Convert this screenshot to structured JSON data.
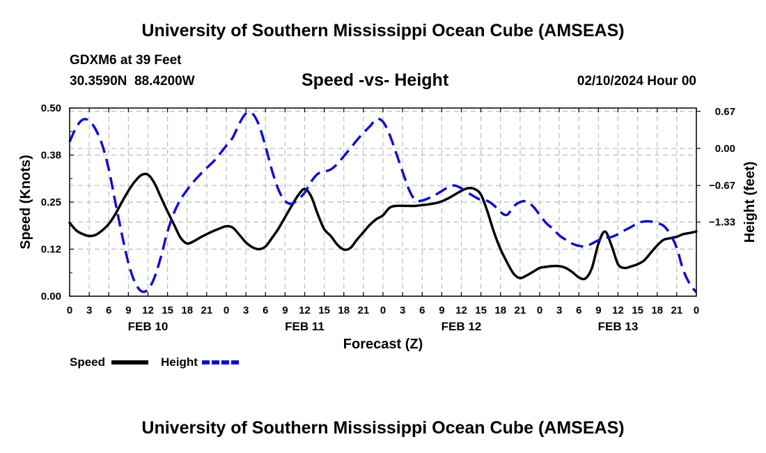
{
  "header": {
    "title": "University of Southern Mississippi Ocean Cube (AMSEAS)",
    "station": "GDXM6 at 39 Feet",
    "coords": "30.3590N  88.4200W",
    "chart_title": "Speed -vs- Height",
    "date": "02/10/2024 Hour 00"
  },
  "footer": {
    "title": "University of Southern Mississippi Ocean Cube (AMSEAS)"
  },
  "colors": {
    "speed": "#000000",
    "height": "#1010c8",
    "grid": "#bbbbbb"
  },
  "chart_data": {
    "type": "line",
    "title": "Speed -vs- Height",
    "xlabel": "Forecast (Z)",
    "ylabel": "Speed (Knots)",
    "ylabel_right": "Height (feet)",
    "xlim": [
      0,
      96
    ],
    "ylim": [
      0,
      0.5
    ],
    "ylim_right": [
      -2.67,
      0.73
    ],
    "yticks": [
      {
        "v": 0.0,
        "label": "0.00"
      },
      {
        "v": 0.125,
        "label": "0.12"
      },
      {
        "v": 0.25,
        "label": "0.25"
      },
      {
        "v": 0.375,
        "label": "0.38"
      },
      {
        "v": 0.5,
        "label": "0.50"
      }
    ],
    "yticks_right": [
      {
        "v": 0.67,
        "label": "0.67"
      },
      {
        "v": 0.0,
        "label": "0.00"
      },
      {
        "v": -0.67,
        "label": "-0.67"
      },
      {
        "v": -1.33,
        "label": "-1.33"
      }
    ],
    "xticks": [
      "0",
      "3",
      "6",
      "9",
      "12",
      "15",
      "18",
      "21",
      "0",
      "3",
      "6",
      "9",
      "12",
      "15",
      "18",
      "21",
      "0",
      "3",
      "6",
      "9",
      "12",
      "15",
      "18",
      "21",
      "0",
      "3",
      "6",
      "9",
      "12",
      "15",
      "18",
      "21",
      "0"
    ],
    "day_labels": [
      {
        "hour": 12,
        "label": "FEB 10"
      },
      {
        "hour": 36,
        "label": "FEB 11"
      },
      {
        "hour": 60,
        "label": "FEB 12"
      },
      {
        "hour": 84,
        "label": "FEB 13"
      }
    ],
    "grid": true,
    "legend_position": "bottom-left",
    "series": [
      {
        "name": "Speed",
        "axis": "left",
        "style": "solid",
        "x": [
          0,
          1,
          2,
          3,
          4,
          5,
          6,
          7,
          8,
          9,
          10,
          11,
          12,
          13,
          14,
          15,
          16,
          17,
          18,
          19,
          20,
          21,
          22,
          23,
          24,
          25,
          26,
          27,
          28,
          29,
          30,
          31,
          32,
          33,
          34,
          35,
          36,
          37,
          38,
          39,
          40,
          41,
          42,
          43,
          44,
          45,
          46,
          47,
          48,
          49,
          50,
          51,
          52,
          53,
          54,
          55,
          56,
          57,
          58,
          59,
          60,
          61,
          62,
          63,
          64,
          65,
          66,
          67,
          68,
          69,
          70,
          71,
          72,
          73,
          74,
          75,
          76,
          77,
          78,
          79,
          80,
          81,
          82,
          83,
          84,
          85,
          86,
          87,
          88,
          89,
          90,
          91,
          92,
          93,
          94,
          95,
          96
        ],
        "y": [
          0.195,
          0.175,
          0.165,
          0.16,
          0.163,
          0.175,
          0.192,
          0.218,
          0.25,
          0.28,
          0.305,
          0.322,
          0.323,
          0.3,
          0.262,
          0.225,
          0.19,
          0.155,
          0.14,
          0.146,
          0.156,
          0.165,
          0.173,
          0.18,
          0.186,
          0.182,
          0.163,
          0.143,
          0.13,
          0.125,
          0.132,
          0.155,
          0.18,
          0.21,
          0.24,
          0.268,
          0.285,
          0.265,
          0.218,
          0.178,
          0.16,
          0.137,
          0.124,
          0.128,
          0.15,
          0.17,
          0.19,
          0.205,
          0.215,
          0.235,
          0.24,
          0.24,
          0.24,
          0.24,
          0.242,
          0.244,
          0.247,
          0.252,
          0.26,
          0.27,
          0.28,
          0.287,
          0.285,
          0.27,
          0.225,
          0.17,
          0.125,
          0.09,
          0.06,
          0.048,
          0.055,
          0.065,
          0.075,
          0.078,
          0.08,
          0.08,
          0.075,
          0.064,
          0.05,
          0.047,
          0.075,
          0.14,
          0.172,
          0.135,
          0.085,
          0.075,
          0.079,
          0.085,
          0.095,
          0.115,
          0.135,
          0.15,
          0.154,
          0.158,
          0.165,
          0.168,
          0.172
        ]
      },
      {
        "name": "Height",
        "axis": "right",
        "style": "dashed",
        "x": [
          0,
          1,
          2,
          3,
          4,
          5,
          6,
          7,
          8,
          9,
          10,
          11,
          12,
          13,
          14,
          15,
          16,
          17,
          18,
          19,
          20,
          21,
          22,
          23,
          24,
          25,
          26,
          27,
          28,
          29,
          30,
          31,
          32,
          33,
          34,
          35,
          36,
          37,
          38,
          39,
          40,
          41,
          42,
          43,
          44,
          45,
          46,
          47,
          48,
          49,
          50,
          51,
          52,
          53,
          54,
          55,
          56,
          57,
          58,
          59,
          60,
          61,
          62,
          63,
          64,
          65,
          66,
          67,
          68,
          69,
          70,
          71,
          72,
          73,
          74,
          75,
          76,
          77,
          78,
          79,
          80,
          81,
          82,
          83,
          84,
          85,
          86,
          87,
          88,
          89,
          90,
          91,
          92,
          93,
          94,
          95,
          96
        ],
        "y": [
          0.12,
          0.38,
          0.52,
          0.5,
          0.34,
          0.06,
          -0.38,
          -0.97,
          -1.55,
          -2.07,
          -2.42,
          -2.58,
          -2.55,
          -2.33,
          -1.95,
          -1.5,
          -1.16,
          -0.92,
          -0.75,
          -0.6,
          -0.47,
          -0.35,
          -0.24,
          -0.1,
          0.05,
          0.2,
          0.45,
          0.63,
          0.63,
          0.42,
          0.04,
          -0.4,
          -0.75,
          -0.95,
          -1.0,
          -0.92,
          -0.8,
          -0.6,
          -0.46,
          -0.42,
          -0.38,
          -0.28,
          -0.14,
          0.0,
          0.15,
          0.28,
          0.4,
          0.53,
          0.48,
          0.25,
          -0.08,
          -0.42,
          -0.75,
          -0.94,
          -0.94,
          -0.9,
          -0.84,
          -0.77,
          -0.7,
          -0.67,
          -0.72,
          -0.8,
          -0.87,
          -0.93,
          -0.95,
          -1.03,
          -1.15,
          -1.2,
          -1.05,
          -0.97,
          -0.96,
          -1.05,
          -1.2,
          -1.35,
          -1.45,
          -1.57,
          -1.65,
          -1.72,
          -1.76,
          -1.77,
          -1.72,
          -1.66,
          -1.62,
          -1.6,
          -1.55,
          -1.48,
          -1.42,
          -1.35,
          -1.32,
          -1.32,
          -1.35,
          -1.4,
          -1.55,
          -1.8,
          -2.2,
          -2.45,
          -2.6
        ]
      }
    ]
  }
}
